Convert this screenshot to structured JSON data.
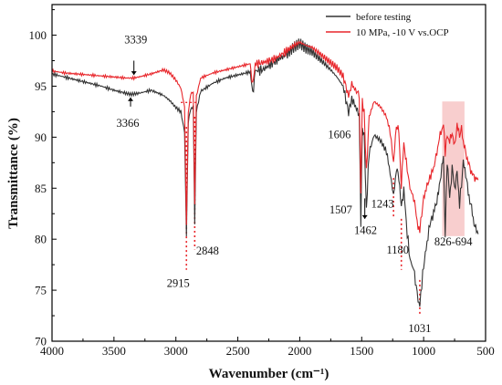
{
  "chart_data": {
    "type": "line",
    "xlabel": "Wavenumber (cm⁻¹)",
    "ylabel": "Transmittance (%)",
    "xlim": [
      4000,
      500
    ],
    "ylim": [
      70,
      103
    ],
    "xticks": [
      "4000",
      "3500",
      "3000",
      "2500",
      "2000",
      "1500",
      "1000",
      "500"
    ],
    "yticks": [
      "70",
      "75",
      "80",
      "85",
      "90",
      "95",
      "100"
    ],
    "legend_position": "top-right",
    "series": [
      {
        "name": "before testing",
        "color": "#333333",
        "x": [
          4000,
          3900,
          3800,
          3700,
          3600,
          3500,
          3400,
          3366,
          3300,
          3200,
          3100,
          3050,
          3000,
          2960,
          2930,
          2915,
          2900,
          2880,
          2860,
          2848,
          2835,
          2800,
          2700,
          2600,
          2500,
          2400,
          2380,
          2360,
          2300,
          2200,
          2100,
          2050,
          2000,
          1950,
          1900,
          1850,
          1800,
          1750,
          1700,
          1650,
          1606,
          1580,
          1550,
          1520,
          1507,
          1495,
          1480,
          1462,
          1440,
          1400,
          1350,
          1300,
          1270,
          1243,
          1220,
          1200,
          1180,
          1160,
          1140,
          1110,
          1080,
          1060,
          1045,
          1031,
          1015,
          1000,
          980,
          950,
          920,
          900,
          880,
          860,
          840,
          826,
          810,
          790,
          770,
          750,
          730,
          710,
          694,
          680,
          660,
          640,
          620,
          600,
          580,
          560
        ],
        "y": [
          96.2,
          95.9,
          95.6,
          95.3,
          95.0,
          94.6,
          94.3,
          94.2,
          94.3,
          94.6,
          94.1,
          93.6,
          92.9,
          92.5,
          90.5,
          80.3,
          91.5,
          92.8,
          93.0,
          81.5,
          92.5,
          94.5,
          95.3,
          95.8,
          96.1,
          96.4,
          94.2,
          96.5,
          96.6,
          97.4,
          98.2,
          98.8,
          99.2,
          98.7,
          98.4,
          97.8,
          97.2,
          96.6,
          95.9,
          95.0,
          92.4,
          93.8,
          93.0,
          92.2,
          81.5,
          91.0,
          90.0,
          83.0,
          88.5,
          90.2,
          89.7,
          88.6,
          86.5,
          84.2,
          86.8,
          86.2,
          83.0,
          85.0,
          81.5,
          78.0,
          77.0,
          75.5,
          74.0,
          73.6,
          75.5,
          77.5,
          79.0,
          81.5,
          82.5,
          83.5,
          84.5,
          86.5,
          88.0,
          80.5,
          87.8,
          84.0,
          87.0,
          85.0,
          86.5,
          83.5,
          85.5,
          87.5,
          86.5,
          84.5,
          83.5,
          82.0,
          81.0,
          80.5
        ]
      },
      {
        "name": "10 MPa, -10 V vs.OCP",
        "color": "#e8262b",
        "x": [
          4000,
          3900,
          3800,
          3700,
          3600,
          3500,
          3400,
          3339,
          3300,
          3200,
          3100,
          3050,
          3000,
          2960,
          2930,
          2915,
          2900,
          2880,
          2860,
          2848,
          2835,
          2800,
          2700,
          2600,
          2500,
          2400,
          2380,
          2360,
          2300,
          2200,
          2100,
          2050,
          2000,
          1950,
          1900,
          1850,
          1800,
          1750,
          1700,
          1650,
          1606,
          1580,
          1550,
          1520,
          1507,
          1495,
          1480,
          1462,
          1440,
          1400,
          1350,
          1300,
          1270,
          1243,
          1220,
          1200,
          1180,
          1160,
          1140,
          1110,
          1080,
          1060,
          1045,
          1031,
          1015,
          1000,
          980,
          950,
          920,
          900,
          880,
          860,
          840,
          826,
          810,
          790,
          770,
          750,
          730,
          710,
          694,
          680,
          660,
          640,
          620,
          600,
          580,
          560
        ],
        "y": [
          96.5,
          96.3,
          96.2,
          96.1,
          96.0,
          95.9,
          95.8,
          95.8,
          95.9,
          96.2,
          96.6,
          96.3,
          95.6,
          94.8,
          93.0,
          81.5,
          92.5,
          94.2,
          94.5,
          83.5,
          94.0,
          95.8,
          96.3,
          96.6,
          96.9,
          97.2,
          95.0,
          97.2,
          97.3,
          97.7,
          98.5,
          99.0,
          99.3,
          99.0,
          98.8,
          98.3,
          97.8,
          97.3,
          96.8,
          96.0,
          94.0,
          95.2,
          94.6,
          94.2,
          84.5,
          93.4,
          92.5,
          86.5,
          92.0,
          93.5,
          93.0,
          92.0,
          90.5,
          87.5,
          91.2,
          90.5,
          85.2,
          89.5,
          87.5,
          85.0,
          84.0,
          82.5,
          81.0,
          81.0,
          82.5,
          84.0,
          85.0,
          86.0,
          87.0,
          88.0,
          89.5,
          90.5,
          91.3,
          88.5,
          90.3,
          89.5,
          90.5,
          89.0,
          91.3,
          90.0,
          91.0,
          89.5,
          88.5,
          87.5,
          86.8,
          86.2,
          86.0,
          85.8
        ]
      }
    ],
    "annotations": [
      {
        "text": "3339",
        "x": 3339,
        "y": 95.8
      },
      {
        "text": "3366",
        "x": 3366,
        "y": 94.2
      },
      {
        "text": "2915",
        "x": 2915,
        "y": 80.3
      },
      {
        "text": "2848",
        "x": 2848,
        "y": 81.5
      },
      {
        "text": "1606",
        "x": 1606,
        "y": 92.4
      },
      {
        "text": "1507",
        "x": 1507,
        "y": 81.5
      },
      {
        "text": "1462",
        "x": 1462,
        "y": 83.0
      },
      {
        "text": "1243",
        "x": 1243,
        "y": 84.2
      },
      {
        "text": "1180",
        "x": 1180,
        "y": 83.0
      },
      {
        "text": "1031",
        "x": 1031,
        "y": 73.6
      },
      {
        "text": "826-694",
        "x": 760,
        "y": 80.5
      }
    ],
    "highlight_band": {
      "x_from": 850,
      "x_to": 670,
      "color": "#f7c6c6"
    }
  }
}
